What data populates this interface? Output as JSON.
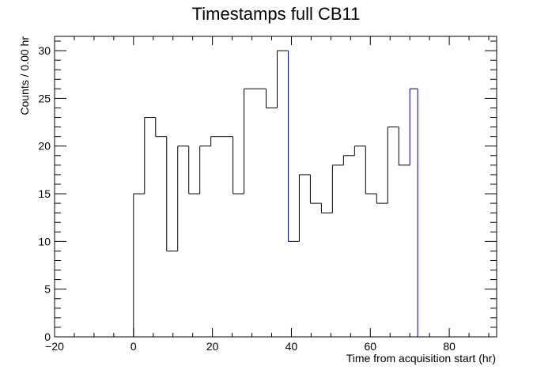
{
  "chart_data": {
    "type": "bar",
    "title": "Timestamps full CB11",
    "xlabel": "Time from acquisition start (hr)",
    "ylabel": "Counts / 0.00 hr",
    "xlim": [
      -20,
      92
    ],
    "ylim": [
      0,
      31.5
    ],
    "xticks": [
      -20,
      0,
      20,
      40,
      60,
      80
    ],
    "yticks": [
      0,
      5,
      10,
      15,
      20,
      25,
      30
    ],
    "grid": false,
    "bin_edges": [
      0,
      2.8,
      5.6,
      8.4,
      11.2,
      14.0,
      16.8,
      19.6,
      22.4,
      25.2,
      28.0,
      30.8,
      33.6,
      36.4,
      39.2,
      42.0,
      44.8,
      47.6,
      50.4,
      53.2,
      56.0,
      58.8,
      61.6,
      64.4,
      67.2,
      70.0,
      72.0
    ],
    "values": [
      15,
      23,
      21,
      9,
      20,
      15,
      20,
      21,
      21,
      15,
      26,
      26,
      24,
      30,
      10,
      17,
      14,
      13,
      18,
      19,
      20,
      15,
      14,
      22,
      18,
      26
    ],
    "line_colors": [
      "#000000",
      "#00008b"
    ]
  }
}
